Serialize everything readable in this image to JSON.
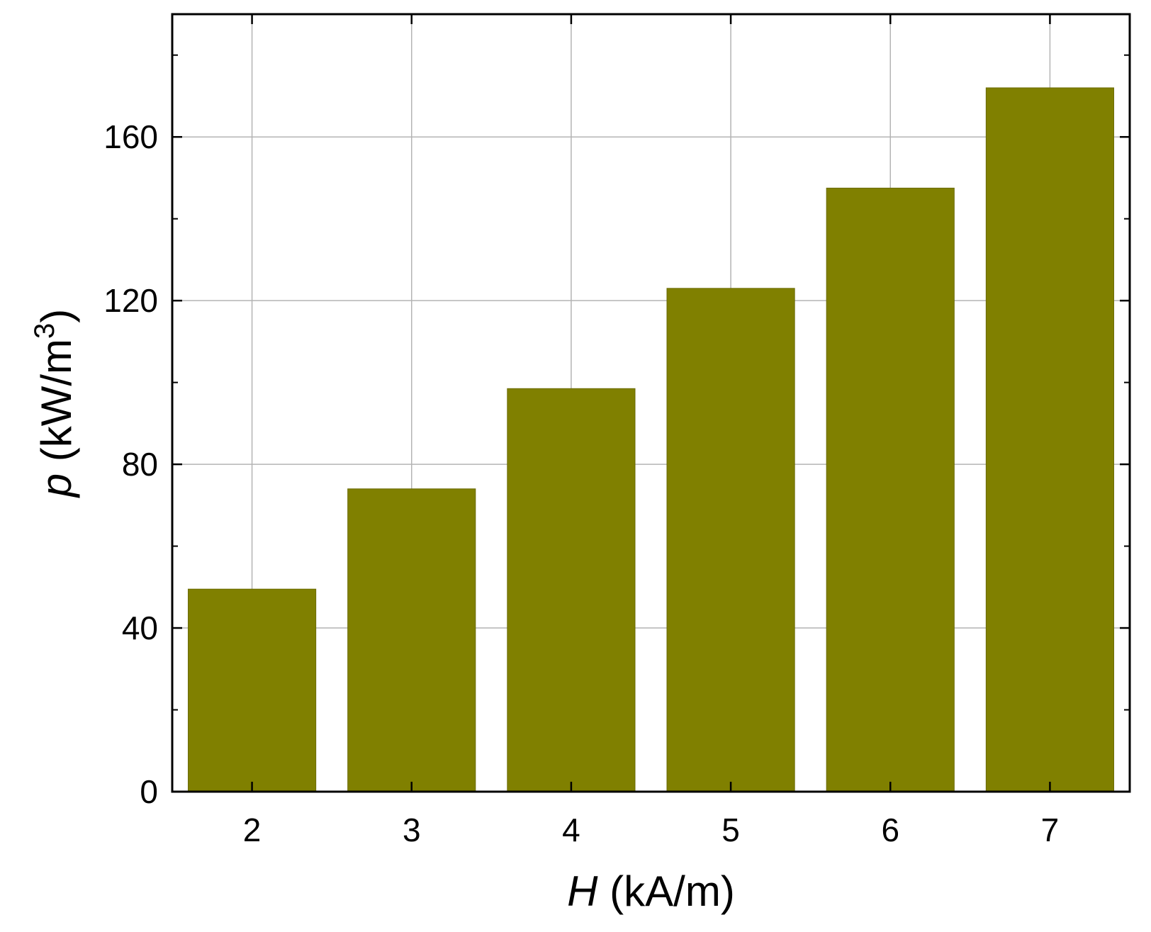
{
  "chart_data": {
    "type": "bar",
    "categories": [
      "2",
      "3",
      "4",
      "5",
      "6",
      "7"
    ],
    "values": [
      49.5,
      74,
      98.5,
      123,
      147.5,
      172
    ],
    "xlabel": {
      "symbol": "H",
      "unit": " (kA/m)"
    },
    "ylabel": {
      "symbol": "p",
      "unit": " (kW/m",
      "sup": "3",
      "close": ")"
    },
    "ylim": [
      0,
      190
    ],
    "yticks": [
      0,
      40,
      80,
      120,
      160
    ],
    "grid": true,
    "bar_color": "#808000"
  }
}
